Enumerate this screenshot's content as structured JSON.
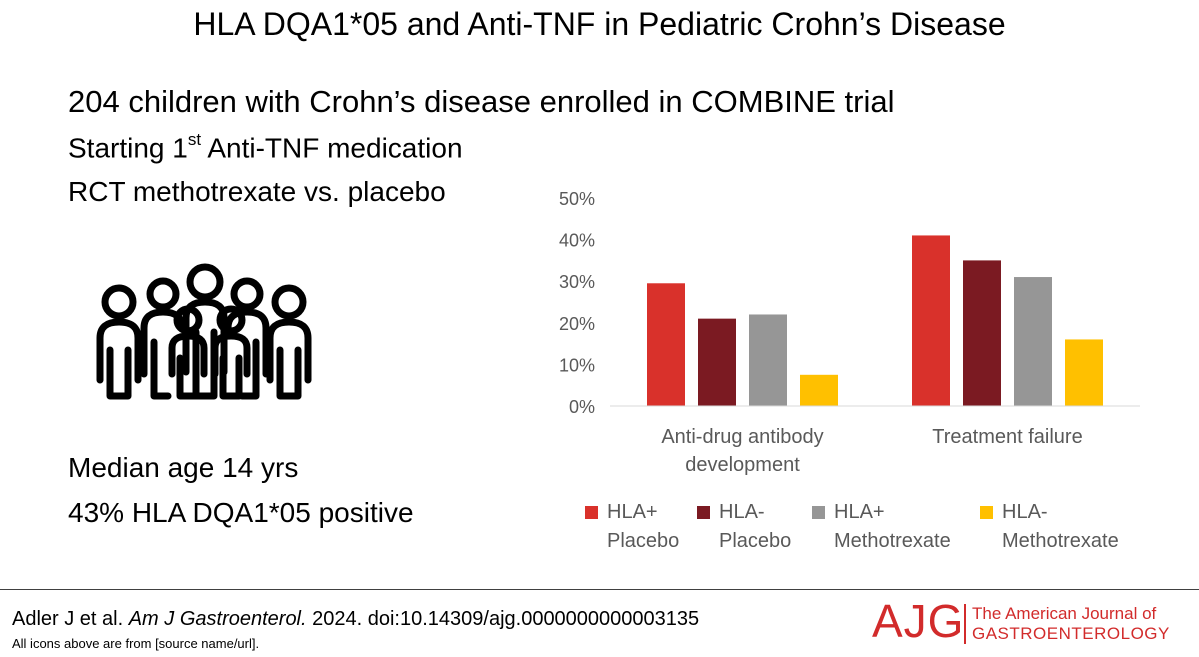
{
  "header": {
    "title": "HLA DQA1*05 and Anti-TNF in Pediatric Crohn’s Disease"
  },
  "summary": {
    "lead": "204 children with Crohn’s disease enrolled in COMBINE trial",
    "line1_pre": "Starting 1",
    "line1_sup": "st",
    "line1_post": " Anti-TNF medication",
    "line2": "RCT methotrexate vs. placebo",
    "line3": "Median age 14 yrs",
    "line4": "43% HLA DQA1*05 positive",
    "illustration_icon": "group-of-people-icon"
  },
  "chart_data": {
    "type": "bar",
    "categories": [
      [
        "Anti-drug antibody",
        "development"
      ],
      [
        "Treatment failure"
      ]
    ],
    "series": [
      {
        "name": [
          "HLA+",
          "Placebo"
        ],
        "values": [
          29.5,
          41
        ],
        "color": "#d9312b"
      },
      {
        "name": [
          "HLA-",
          "Placebo"
        ],
        "values": [
          21,
          35
        ],
        "color": "#7b1a22"
      },
      {
        "name": [
          "HLA+",
          "Methotrexate"
        ],
        "values": [
          22,
          31
        ],
        "color": "#969696"
      },
      {
        "name": [
          "HLA-",
          "Methotrexate"
        ],
        "values": [
          7.5,
          16
        ],
        "color": "#ffc000"
      }
    ],
    "ylim": [
      0,
      50
    ],
    "yticks": [
      0,
      10,
      20,
      30,
      40,
      50
    ],
    "ytick_labels": [
      "0%",
      "10%",
      "20%",
      "30%",
      "40%",
      "50%"
    ],
    "grid": false,
    "legend_position": "bottom",
    "title": "",
    "xlabel": "",
    "ylabel": ""
  },
  "footer": {
    "author": "Adler J et al. ",
    "journal": "Am J Gastroenterol.",
    "rest": " 2024. doi:10.14309/ajg.0000000000003135",
    "note": "All icons above are from [source name/url].",
    "logo_mark": "AJG",
    "logo_line1": "The American Journal of",
    "logo_line2": "GASTROENTEROLOGY",
    "logo_color": "#d22b2b"
  }
}
